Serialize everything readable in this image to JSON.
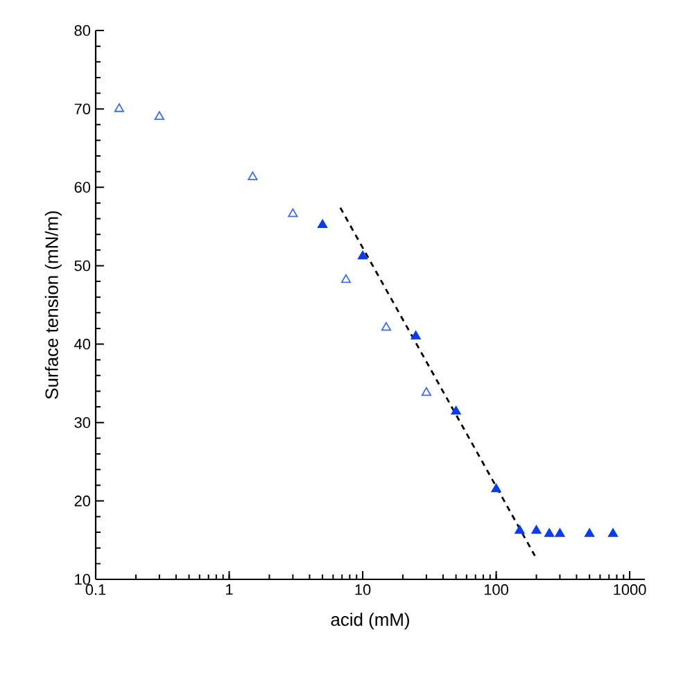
{
  "chart_data": {
    "type": "scatter",
    "xlabel": "acid (mM)",
    "ylabel": "Surface tension (mN/m)",
    "log": "x",
    "xlim": [
      0.1,
      1300
    ],
    "ylim": [
      10,
      80
    ],
    "xticks": [
      0.1,
      1,
      10,
      100,
      1000
    ],
    "yticks": [
      10,
      20,
      30,
      40,
      50,
      60,
      70,
      80
    ],
    "grid": false,
    "marker": "triangle",
    "series": [
      {
        "color": "#3a6cf4",
        "marker": "triangle-open",
        "x": [
          0.15,
          0.3,
          1.5,
          3,
          7.5,
          15,
          30
        ],
        "values": [
          70,
          69,
          61.3,
          56.6,
          48.2,
          42.1,
          33.8
        ]
      },
      {
        "color": "#0a3cf0",
        "x": [
          5,
          10,
          25,
          50,
          100,
          150,
          200,
          250,
          300,
          500,
          750
        ],
        "values": [
          55.2,
          51.2,
          41,
          31.4,
          21.5,
          16.2,
          16.2,
          15.8,
          15.8,
          15.8,
          15.8
        ]
      },
      {
        "type": "line",
        "color": "#000000",
        "line_style": "dashed",
        "marker": "none",
        "x": [
          6.8,
          195
        ],
        "values": [
          57.4,
          13
        ]
      }
    ]
  }
}
